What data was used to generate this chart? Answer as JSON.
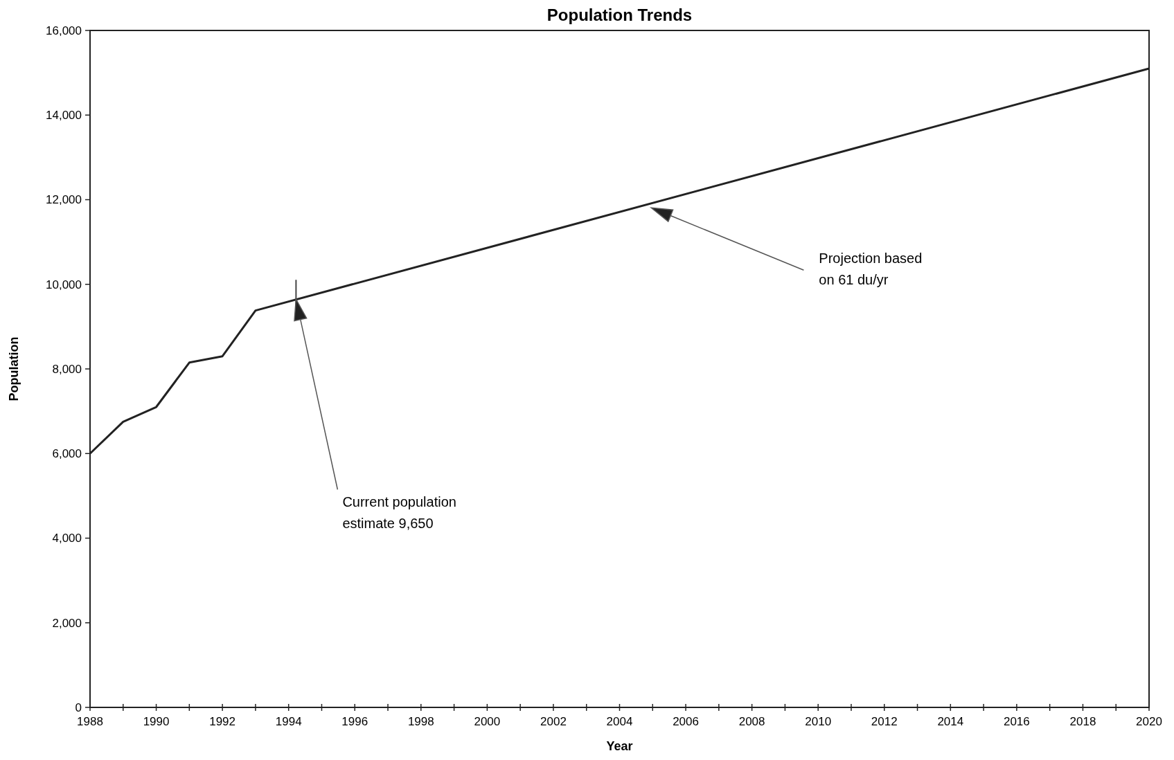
{
  "chart_data": {
    "type": "line",
    "title": "Population Trends",
    "xlabel": "Year",
    "ylabel": "Population",
    "x": [
      1988,
      1989,
      1990,
      1991,
      1992,
      1993,
      2020
    ],
    "series": [
      {
        "color": "#222222",
        "values": [
          6000,
          6750,
          7100,
          8150,
          8300,
          9380,
          15100
        ]
      }
    ],
    "xlim": [
      1988,
      2020
    ],
    "xticks": [
      1988,
      {
        "value": 1989,
        "label": null
      },
      1990,
      {
        "value": 1991,
        "label": null
      },
      1992,
      {
        "value": 1993,
        "label": null
      },
      1994,
      {
        "value": 1995,
        "label": null
      },
      1996,
      {
        "value": 1997,
        "label": null
      },
      1998,
      {
        "value": 1999,
        "label": null
      },
      2000,
      {
        "value": 2001,
        "label": null
      },
      2002,
      {
        "value": 2003,
        "label": null
      },
      2004,
      {
        "value": 2005,
        "label": null
      },
      2006,
      {
        "value": 2007,
        "label": null
      },
      2008,
      {
        "value": 2009,
        "label": null
      },
      2010,
      {
        "value": 2011,
        "label": null
      },
      2012,
      {
        "value": 2013,
        "label": null
      },
      2014,
      {
        "value": 2015,
        "label": null
      },
      2016,
      {
        "value": 2017,
        "label": null
      },
      2018,
      {
        "value": 2019,
        "label": null
      },
      2020
    ],
    "ylim": [
      0,
      16000
    ],
    "yticks": [
      {
        "value": 0,
        "label": "0"
      },
      {
        "value": 2000,
        "label": "2,000"
      },
      {
        "value": 4000,
        "label": "4,000"
      },
      {
        "value": 6000,
        "label": "6,000"
      },
      {
        "value": 8000,
        "label": "8,000"
      },
      {
        "value": 10000,
        "label": "10,000"
      },
      {
        "value": 12000,
        "label": "12,000"
      },
      {
        "value": 14000,
        "label": "14,000"
      },
      {
        "value": 16000,
        "label": "16,000"
      }
    ],
    "annotations": [
      "Current population estimate 9,650",
      "Projection based on 61 du/yr"
    ],
    "grid": false,
    "marker": "none",
    "line_style": "solid"
  }
}
